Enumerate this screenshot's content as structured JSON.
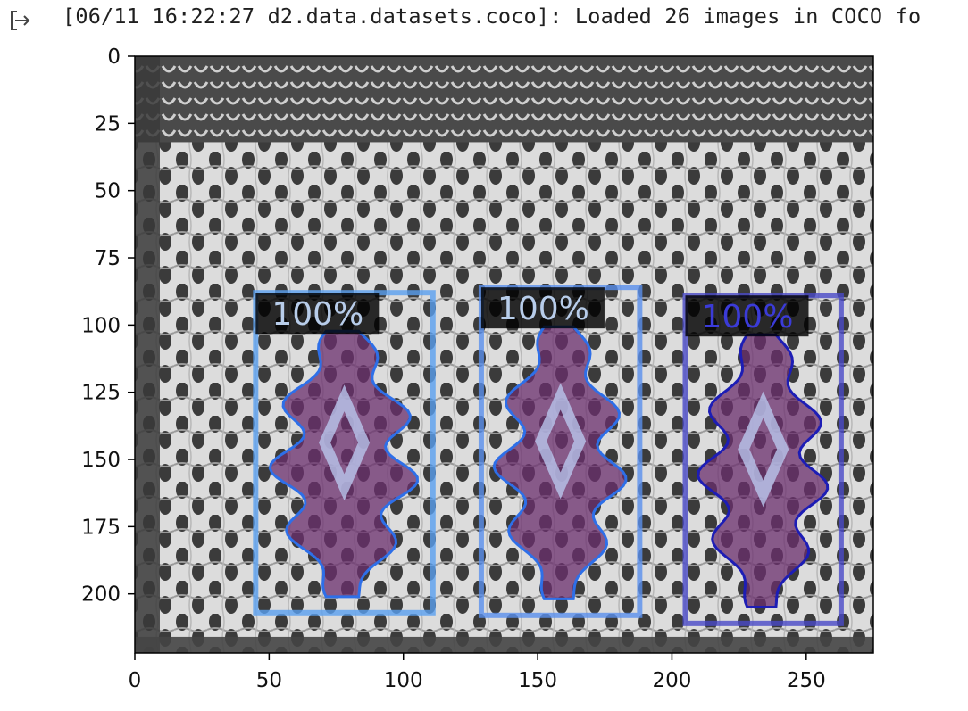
{
  "log": {
    "text": "[06/11 16:22:27 d2.data.datasets.coco]: Loaded 26 images in COCO fo"
  },
  "output_icon": "output-arrow-icon",
  "figure": {
    "image_description_colors": {
      "fabric_dark": "#3a3a3a",
      "fabric_light": "#e6e6e6",
      "mask_fill": "#6b2f6e"
    },
    "detections": [
      {
        "label": "100%",
        "box_color": "#5aa0f0",
        "outline_color": "#2e6fe8"
      },
      {
        "label": "100%",
        "box_color": "#5a90ee",
        "outline_color": "#2e6fe8"
      },
      {
        "label": "100%",
        "box_color": "#4a4ac8",
        "outline_color": "#1d1db5"
      }
    ]
  },
  "chart_data": {
    "type": "image",
    "xlim": [
      0,
      275
    ],
    "ylim": [
      222,
      0
    ],
    "xticks": [
      "0",
      "50",
      "100",
      "150",
      "200",
      "250"
    ],
    "yticks": [
      "0",
      "25",
      "50",
      "75",
      "100",
      "125",
      "150",
      "175",
      "200"
    ],
    "boxes": [
      {
        "label": "100%",
        "x0": 45,
        "y0": 88,
        "x1": 111,
        "y1": 207
      },
      {
        "label": "100%",
        "x0": 129,
        "y0": 86,
        "x1": 188,
        "y1": 208
      },
      {
        "label": "100%",
        "x0": 205,
        "y0": 89,
        "x1": 263,
        "y1": 211
      }
    ]
  }
}
